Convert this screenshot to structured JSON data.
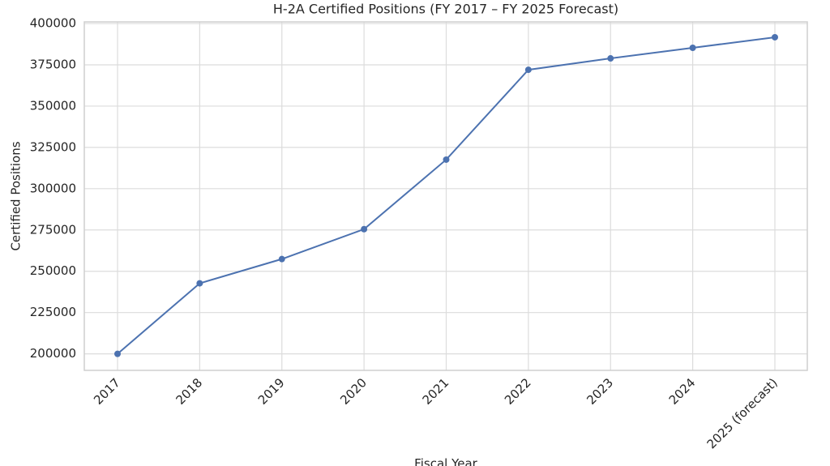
{
  "chart_data": {
    "type": "line",
    "title": "H-2A Certified Positions (FY 2017 – FY 2025 Forecast)",
    "x_label": "Fiscal Year",
    "y_label": "Certified Positions",
    "categories": [
      "2017",
      "2018",
      "2019",
      "2020",
      "2021",
      "2022",
      "2023",
      "2024",
      "2025 (forecast)"
    ],
    "series": [
      {
        "name": "Certified Positions",
        "color": "#4c72b0",
        "values": [
          200000,
          242700,
          257400,
          275500,
          317600,
          372000,
          378900,
          385300,
          391700
        ]
      }
    ],
    "ylim": [
      190000,
      401000
    ],
    "yticks": [
      200000,
      225000,
      250000,
      275000,
      300000,
      325000,
      350000,
      375000,
      400000
    ],
    "grid": true
  }
}
